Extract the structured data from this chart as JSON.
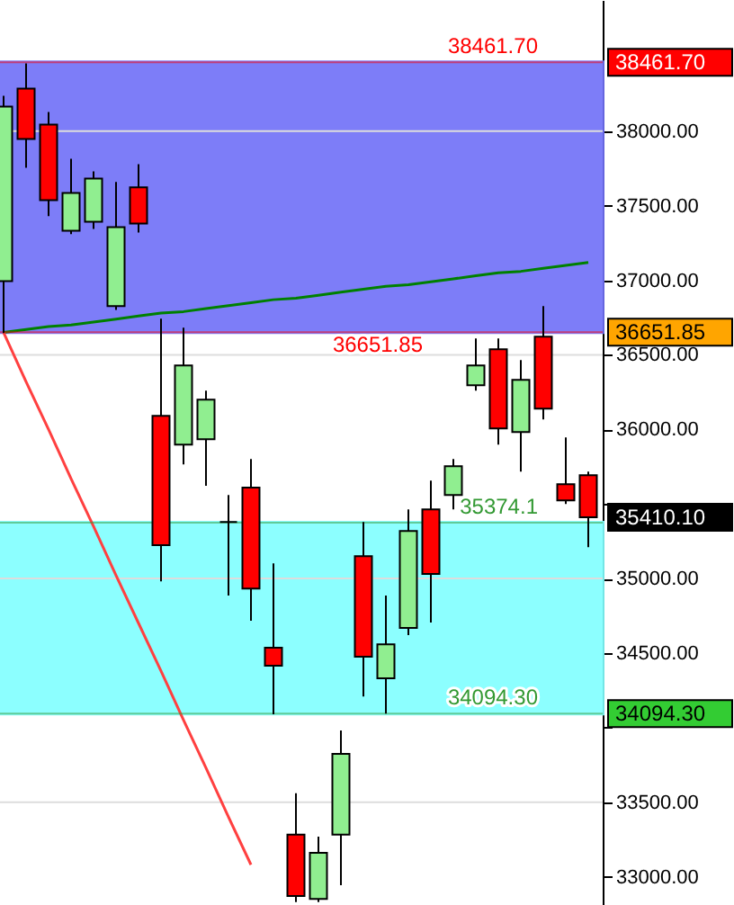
{
  "chart_data": {
    "type": "candlestick",
    "categories": [
      null,
      null,
      null,
      null,
      null,
      null,
      null,
      null,
      null,
      null,
      null,
      null,
      null,
      null,
      null,
      null,
      null,
      null,
      null,
      null,
      null,
      null,
      null,
      null,
      null,
      null,
      null
    ],
    "ohlc": [
      [
        36995,
        38238,
        36646,
        38165
      ],
      [
        38286,
        38455,
        37755,
        37948
      ],
      [
        38045,
        38129,
        37430,
        37538
      ],
      [
        37333,
        37815,
        37309,
        37586
      ],
      [
        37393,
        37731,
        37345,
        37683
      ],
      [
        36827,
        37659,
        36802,
        37357
      ],
      [
        37623,
        37779,
        37321,
        37381
      ],
      [
        36091,
        36742,
        34981,
        35223
      ],
      [
        35898,
        36682,
        35765,
        36429
      ],
      [
        35934,
        36260,
        35621,
        36199
      ],
      [
        35379,
        35560,
        34885,
        35379
      ],
      [
        35609,
        35802,
        34716,
        34933
      ],
      [
        34535,
        35102,
        34089,
        34415
      ],
      [
        33282,
        33559,
        32830,
        32871
      ],
      [
        32850,
        33269,
        32830,
        33160
      ],
      [
        33282,
        33981,
        32942,
        33823
      ],
      [
        35150,
        35379,
        34209,
        34475
      ],
      [
        34330,
        34885,
        34094,
        34559
      ],
      [
        34668,
        35464,
        34620,
        35319
      ],
      [
        35464,
        35657,
        34704,
        35030
      ],
      [
        35560,
        35802,
        35464,
        35753
      ],
      [
        36296,
        36610,
        36260,
        36429
      ],
      [
        36537,
        36610,
        35898,
        36006
      ],
      [
        35982,
        36465,
        35717,
        36332
      ],
      [
        36622,
        36827,
        36067,
        36139
      ],
      [
        35633,
        35946,
        35500,
        35524
      ],
      [
        35693,
        35717,
        35210,
        35410.1
      ]
    ],
    "colors": [
      "#90ee90",
      "#ff0000",
      "#ff0000",
      "#90ee90",
      "#90ee90",
      "#90ee90",
      "#ff0000",
      "#ff0000",
      "#90ee90",
      "#90ee90",
      "#000000",
      "#ff0000",
      "#ff0000",
      "#ff0000",
      "#90ee90",
      "#90ee90",
      "#ff0000",
      "#90ee90",
      "#90ee90",
      "#ff0000",
      "#90ee90",
      "#90ee90",
      "#ff0000",
      "#90ee90",
      "#ff0000",
      "#ff0000",
      "#ff0000"
    ],
    "series": [
      {
        "type": "line",
        "values": [
          36650,
          36670,
          36690,
          36700,
          36720,
          36740,
          36760,
          36780,
          36790,
          36810,
          36830,
          36850,
          36870,
          36880,
          36900,
          36920,
          36940,
          36960,
          36970,
          36990,
          37010,
          37030,
          37050,
          37060,
          37080,
          37100,
          37120
        ],
        "color": "#008000"
      },
      {
        "type": "line",
        "values": [
          36650,
          36320,
          36000,
          35670,
          35350,
          35020,
          34700,
          34380,
          34050,
          33730,
          33400,
          33080,
          null,
          null,
          null,
          null,
          null,
          null,
          null,
          null,
          null,
          null,
          null,
          null,
          null,
          null,
          null
        ],
        "color": "#ff4040"
      }
    ],
    "ylim": [
      32810,
      38880
    ],
    "yticks": [
      {
        "value": 33000,
        "label": "33000.00"
      },
      {
        "value": 33500,
        "label": "33500.00"
      },
      {
        "value": 34000,
        "label": null
      },
      {
        "value": 34500,
        "label": "34500.00"
      },
      {
        "value": 35000,
        "label": "35000.00"
      },
      {
        "value": 35500,
        "label": null
      },
      {
        "value": 36000,
        "label": "36000.00"
      },
      {
        "value": 36500,
        "label": "36500.00"
      },
      {
        "value": 37000,
        "label": "37000.00"
      },
      {
        "value": 37500,
        "label": "37500.00"
      },
      {
        "value": 38000,
        "label": "38000.00"
      }
    ],
    "grid": "y",
    "bands": [
      {
        "axis": "y",
        "from": 36651.85,
        "to": 38461.7,
        "color": "#7070f8"
      },
      {
        "axis": "y",
        "from": 34094.3,
        "to": 35374.1,
        "color": "#80ffff"
      }
    ],
    "ref_lines": [
      {
        "axis": "y",
        "value": 38461.7,
        "label": "38461.70",
        "color": "#ff0000"
      },
      {
        "axis": "y",
        "value": 36651.85,
        "label": "36651.85",
        "color": "#ff0000"
      },
      {
        "axis": "y",
        "value": 35374.1,
        "label": "35374.1",
        "color": "#339933"
      },
      {
        "axis": "y",
        "value": 34094.3,
        "label": "34094.30",
        "color": "#339933"
      }
    ],
    "annotations": [
      "38461.70",
      "36651.85",
      "35410.10",
      "34094.30"
    ]
  }
}
